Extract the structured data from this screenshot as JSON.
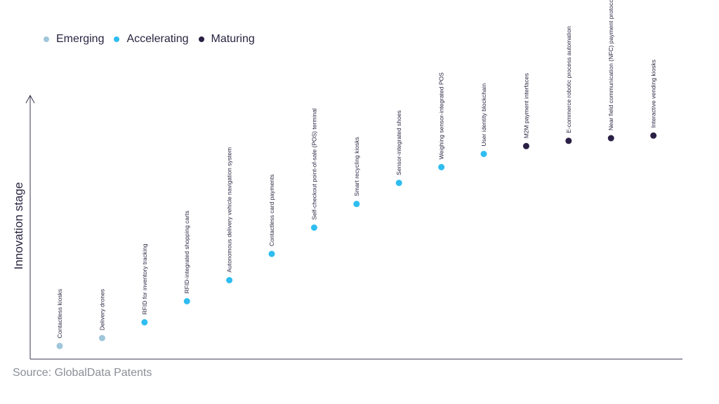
{
  "legend": [
    {
      "label": "Emerging",
      "color": "#9fc6db"
    },
    {
      "label": "Accelerating",
      "color": "#2ebdf0"
    },
    {
      "label": "Maturing",
      "color": "#2a1f44"
    }
  ],
  "source": "Source: GlobalData Patents",
  "chart_data": {
    "type": "scatter",
    "ylabel": "Innovation stage",
    "xlabel": "",
    "ylim": [
      0,
      100
    ],
    "grid": false,
    "legend_position": "top-left",
    "points": [
      {
        "label": "Contactless kiosks",
        "stage": "Emerging",
        "y": 5
      },
      {
        "label": "Delivery drones",
        "stage": "Emerging",
        "y": 8
      },
      {
        "label": "RFID for inventory tracking",
        "stage": "Accelerating",
        "y": 14
      },
      {
        "label": "RFID-integrated shopping carts",
        "stage": "Accelerating",
        "y": 22
      },
      {
        "label": "Autonomous delivery vehicle navigation system",
        "stage": "Accelerating",
        "y": 30
      },
      {
        "label": "Contactless card payments",
        "stage": "Accelerating",
        "y": 40
      },
      {
        "label": "Self-checkout point-of-sale (POS) terminal",
        "stage": "Accelerating",
        "y": 50
      },
      {
        "label": "Smart recycling kiosks",
        "stage": "Accelerating",
        "y": 59
      },
      {
        "label": "Sensor-integrated shoes",
        "stage": "Accelerating",
        "y": 67
      },
      {
        "label": "Weighing sensor-integrated POS",
        "stage": "Accelerating",
        "y": 73
      },
      {
        "label": "User identity blockchain",
        "stage": "Accelerating",
        "y": 78
      },
      {
        "label": "M2M payment interfaces",
        "stage": "Maturing",
        "y": 81
      },
      {
        "label": "E-commerce robotic process automation",
        "stage": "Maturing",
        "y": 83
      },
      {
        "label": "Near field communication (NFC) payment protocols",
        "stage": "Maturing",
        "y": 84
      },
      {
        "label": "Interactive vending kiosks",
        "stage": "Maturing",
        "y": 85
      }
    ]
  }
}
